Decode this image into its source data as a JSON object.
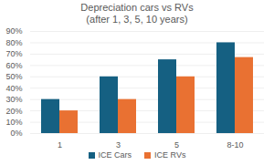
{
  "chart_data": {
    "type": "bar",
    "title": "Depreciation cars vs RVs",
    "subtitle": "(after 1, 3, 5, 10 years)",
    "categories": [
      "1",
      "3",
      "5",
      "8-10"
    ],
    "series": [
      {
        "name": "ICE Cars",
        "color": "#156082",
        "values": [
          30,
          50,
          65,
          80
        ]
      },
      {
        "name": "ICE RVs",
        "color": "#e97132",
        "values": [
          20,
          30,
          50,
          67
        ]
      }
    ],
    "ylim": [
      0,
      90
    ],
    "yticks": [
      {
        "value": 0,
        "label": "0%"
      },
      {
        "value": 10,
        "label": "10%"
      },
      {
        "value": 20,
        "label": "20%"
      },
      {
        "value": 30,
        "label": "30%"
      },
      {
        "value": 40,
        "label": "40%"
      },
      {
        "value": 50,
        "label": "50%"
      },
      {
        "value": 60,
        "label": "60%"
      },
      {
        "value": 70,
        "label": "70%"
      },
      {
        "value": 80,
        "label": "80%"
      },
      {
        "value": 90,
        "label": "90%"
      }
    ],
    "grid": true,
    "legend": "bottom"
  }
}
